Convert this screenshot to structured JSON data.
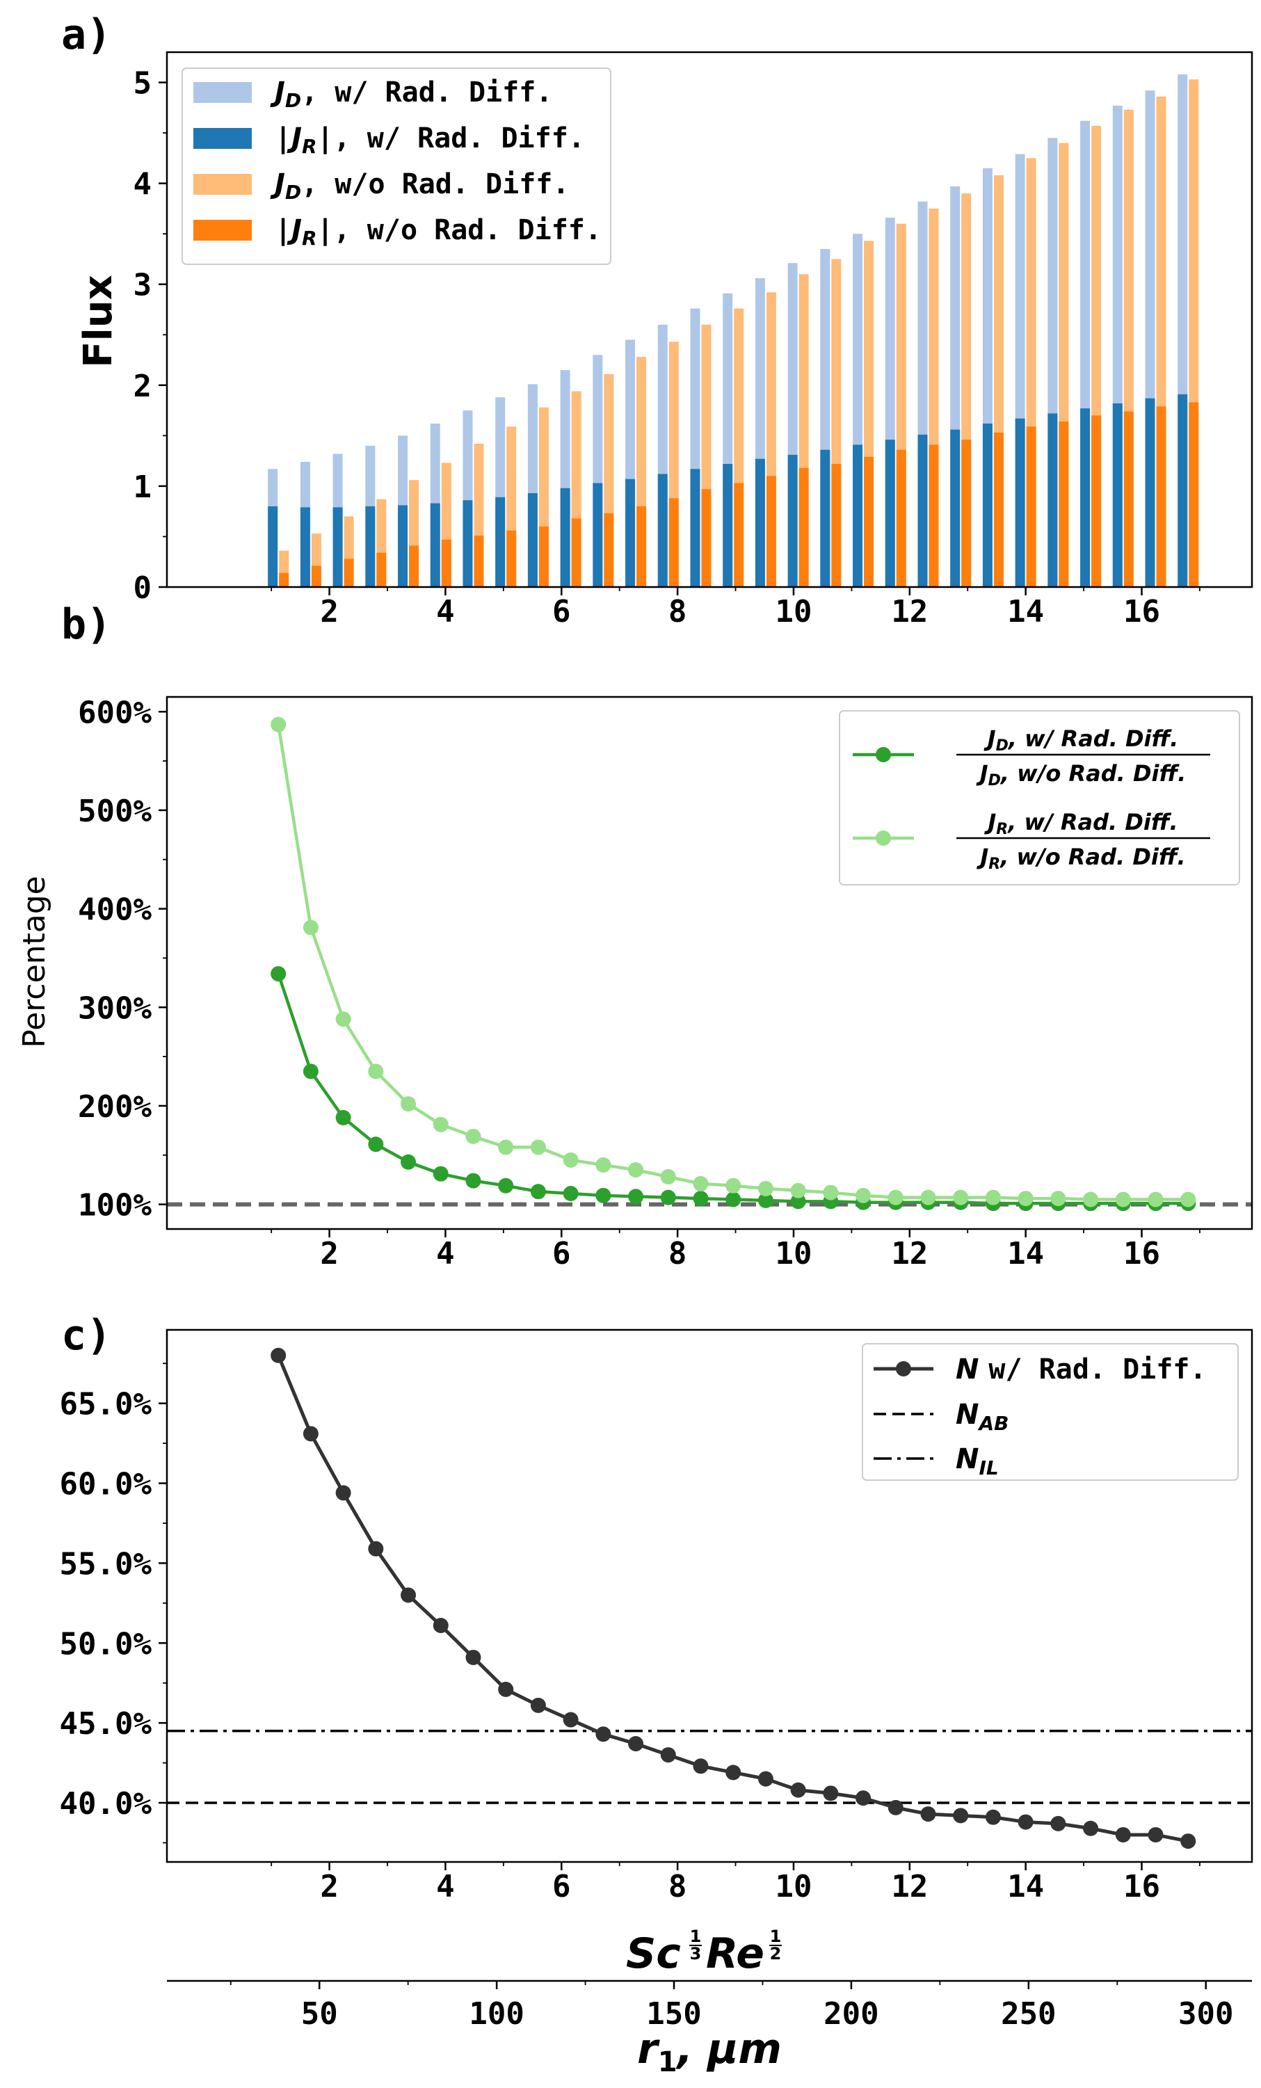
{
  "colors": {
    "jd_with": "#aec7e8",
    "jr_with": "#1f77b4",
    "jd_without": "#ffbb78",
    "jr_without": "#ff7f0e",
    "ratio_jd": "#2ca02c",
    "ratio_jr": "#98df8a",
    "n_line": "#333333",
    "ref_line": "#666666"
  },
  "chart_data": [
    {
      "type": "bar",
      "panel_label": "a)",
      "ylabel": "Flux",
      "x": [
        1.12,
        1.68,
        2.24,
        2.8,
        3.36,
        3.92,
        4.48,
        5.04,
        5.6,
        6.16,
        6.72,
        7.28,
        7.84,
        8.4,
        8.96,
        9.52,
        10.08,
        10.64,
        11.2,
        11.76,
        12.32,
        12.88,
        13.44,
        14.0,
        14.56,
        15.12,
        15.68,
        16.24,
        16.8
      ],
      "xlim": [
        -0.8,
        17.9
      ],
      "ylim": [
        0,
        5.3
      ],
      "xticks": [
        "2",
        "4",
        "6",
        "8",
        "10",
        "12",
        "14",
        "16"
      ],
      "yticks": [
        "0",
        "1",
        "2",
        "3",
        "4",
        "5"
      ],
      "legend_position": "upper-left",
      "series": [
        {
          "name": "w/ Rad. Diff.",
          "math": "J",
          "sub": "D",
          "abs": false,
          "color": "#aec7e8",
          "values": [
            1.17,
            1.24,
            1.32,
            1.4,
            1.5,
            1.62,
            1.75,
            1.88,
            2.01,
            2.15,
            2.3,
            2.45,
            2.6,
            2.76,
            2.91,
            3.06,
            3.21,
            3.35,
            3.5,
            3.66,
            3.82,
            3.97,
            4.15,
            4.29,
            4.45,
            4.62,
            4.77,
            4.92,
            5.08
          ]
        },
        {
          "name": "w/ Rad. Diff.",
          "math": "J",
          "sub": "R",
          "abs": true,
          "color": "#1f77b4",
          "values": [
            0.8,
            0.79,
            0.79,
            0.8,
            0.81,
            0.83,
            0.86,
            0.89,
            0.93,
            0.98,
            1.03,
            1.07,
            1.12,
            1.17,
            1.22,
            1.27,
            1.31,
            1.36,
            1.41,
            1.46,
            1.51,
            1.56,
            1.62,
            1.67,
            1.72,
            1.77,
            1.82,
            1.87,
            1.91
          ]
        },
        {
          "name": "w/o Rad. Diff.",
          "math": "J",
          "sub": "D",
          "abs": false,
          "color": "#ffbb78",
          "values": [
            0.36,
            0.53,
            0.7,
            0.87,
            1.06,
            1.23,
            1.42,
            1.59,
            1.78,
            1.94,
            2.11,
            2.28,
            2.43,
            2.6,
            2.76,
            2.92,
            3.1,
            3.25,
            3.43,
            3.6,
            3.75,
            3.9,
            4.08,
            4.25,
            4.4,
            4.57,
            4.73,
            4.86,
            5.03
          ]
        },
        {
          "name": "w/o Rad. Diff.",
          "math": "J",
          "sub": "R",
          "abs": true,
          "color": "#ff7f0e",
          "values": [
            0.14,
            0.21,
            0.28,
            0.34,
            0.41,
            0.47,
            0.51,
            0.56,
            0.6,
            0.68,
            0.73,
            0.8,
            0.88,
            0.97,
            1.03,
            1.1,
            1.18,
            1.22,
            1.29,
            1.36,
            1.41,
            1.46,
            1.53,
            1.59,
            1.64,
            1.7,
            1.74,
            1.79,
            1.83
          ]
        }
      ]
    },
    {
      "type": "line",
      "panel_label": "b)",
      "ylabel": "Percentage",
      "x": [
        1.12,
        1.68,
        2.24,
        2.8,
        3.36,
        3.92,
        4.48,
        5.04,
        5.6,
        6.16,
        6.72,
        7.28,
        7.84,
        8.4,
        8.96,
        9.52,
        10.08,
        10.64,
        11.2,
        11.76,
        12.32,
        12.88,
        13.44,
        14.0,
        14.56,
        15.12,
        15.68,
        16.24,
        16.8
      ],
      "xlim": [
        -0.8,
        17.9
      ],
      "ylim": [
        75,
        615
      ],
      "yticks": [
        "100%",
        "200%",
        "300%",
        "400%",
        "500%",
        "600%"
      ],
      "xticks": [
        "2",
        "4",
        "6",
        "8",
        "10",
        "12",
        "14",
        "16"
      ],
      "reference_line": 100,
      "legend_position": "upper-right",
      "series": [
        {
          "sub": "D",
          "color": "#2ca02c",
          "values": [
            334,
            235,
            188,
            161,
            143,
            131,
            124,
            119,
            113,
            111,
            109,
            108,
            107,
            106,
            105,
            104,
            103,
            103,
            102,
            102,
            102,
            102,
            101,
            101,
            101,
            101,
            101,
            101,
            101
          ]
        },
        {
          "sub": "R",
          "color": "#98df8a",
          "values": [
            587,
            381,
            288,
            235,
            202,
            181,
            169,
            158,
            158,
            145,
            140,
            135,
            128,
            121,
            119,
            116,
            114,
            112,
            109,
            107,
            107,
            107,
            107,
            106,
            106,
            105,
            105,
            105,
            105
          ]
        }
      ],
      "legend": {
        "num_suffix": ", w/  Rad. Diff.",
        "den_suffix": ", w/o  Rad. Diff."
      }
    },
    {
      "type": "line",
      "panel_label": "c)",
      "x": [
        1.12,
        1.68,
        2.24,
        2.8,
        3.36,
        3.92,
        4.48,
        5.04,
        5.6,
        6.16,
        6.72,
        7.28,
        7.84,
        8.4,
        8.96,
        9.52,
        10.08,
        10.64,
        11.2,
        11.76,
        12.32,
        12.88,
        13.44,
        14.0,
        14.56,
        15.12,
        15.68,
        16.24,
        16.8
      ],
      "xlim": [
        -0.8,
        17.9
      ],
      "ylim": [
        36.3,
        69.6
      ],
      "yticks": [
        "40.0%",
        "45.0%",
        "50.0%",
        "55.0%",
        "60.0%",
        "65.0%"
      ],
      "xticks": [
        "2",
        "4",
        "6",
        "8",
        "10",
        "12",
        "14",
        "16"
      ],
      "series": [
        {
          "name": "w/ Rad. Diff.",
          "math": "N",
          "color": "#333333",
          "values": [
            68.0,
            63.1,
            59.4,
            55.9,
            53.0,
            51.1,
            49.1,
            47.1,
            46.1,
            45.2,
            44.3,
            43.7,
            43.0,
            42.3,
            41.9,
            41.5,
            40.8,
            40.6,
            40.3,
            39.7,
            39.3,
            39.2,
            39.1,
            38.8,
            38.7,
            38.4,
            38.0,
            38.0,
            37.6
          ]
        }
      ],
      "reference_lines": [
        {
          "math": "N",
          "sub": "AB",
          "value": 40.0,
          "style": "dashed"
        },
        {
          "math": "N",
          "sub": "IL",
          "value": 44.5,
          "style": "dashdot"
        }
      ],
      "legend_position": "upper-right",
      "xlabel_math": {
        "a": "Sc",
        "a_exp": [
          "1",
          "3"
        ],
        "b": "Re",
        "b_exp": [
          "1",
          "2"
        ]
      },
      "secondary_x": {
        "xlabel": "r",
        "xlabel_sub": "1",
        "xlabel_unit": ", μm",
        "ticks": [
          50,
          100,
          150,
          200,
          250,
          300
        ],
        "tick_labels": [
          "50",
          "100",
          "150",
          "200",
          "250",
          "300"
        ],
        "xlim": [
          7,
          313
        ]
      }
    }
  ]
}
